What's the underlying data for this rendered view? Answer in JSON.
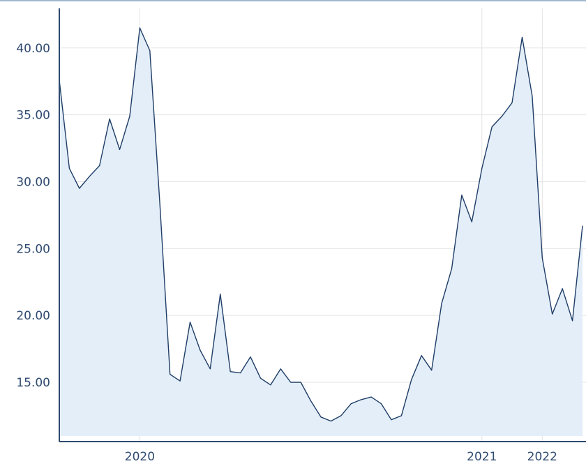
{
  "chart_data": {
    "type": "area",
    "title": "",
    "xlabel": "",
    "ylabel": "",
    "ylim": [
      11.0,
      43.0
    ],
    "y_ticks": [
      "15.00",
      "20.00",
      "25.00",
      "30.00",
      "35.00",
      "40.00"
    ],
    "x_ticks": [
      {
        "label": "2020",
        "index": 8
      },
      {
        "label": "2021",
        "index": 42
      },
      {
        "label": "2022",
        "index": 48
      }
    ],
    "grid": true,
    "colors": {
      "line": "#1f3d66",
      "fill": "#e3eef9",
      "grid": "#e3e3e3",
      "axis": "#2f4a70",
      "tick_text": "#2f4a70"
    },
    "series": [
      {
        "values": [
          37.6,
          31.0,
          29.5,
          30.4,
          31.2,
          34.7,
          32.4,
          34.9,
          41.5,
          39.8,
          28.3,
          15.6,
          15.1,
          19.5,
          17.4,
          16.0,
          21.6,
          15.8,
          15.7,
          16.9,
          15.3,
          14.8,
          16.0,
          15.0,
          15.0,
          13.6,
          12.4,
          12.1,
          12.5,
          13.4,
          13.7,
          13.9,
          13.4,
          12.2,
          12.5,
          15.2,
          17.0,
          15.9,
          20.9,
          23.5,
          29.0,
          27.0,
          31.0,
          34.1,
          34.9,
          35.9,
          40.8,
          36.4,
          24.3,
          20.1,
          22.0,
          19.6,
          26.7
        ]
      }
    ]
  }
}
